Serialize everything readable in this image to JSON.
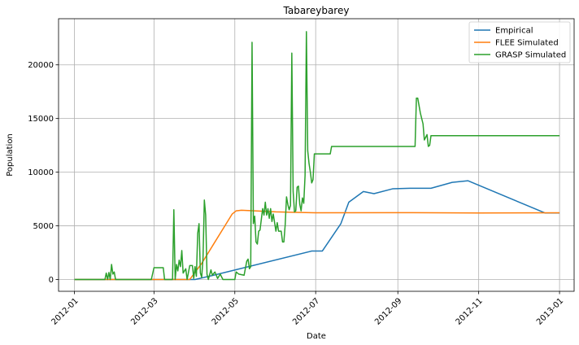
{
  "chart_data": {
    "type": "line",
    "title": "Tabareybarey",
    "xlabel": "Date",
    "ylabel": "Population",
    "x_ticks": [
      "2012-01",
      "2012-03",
      "2012-05",
      "2012-07",
      "2012-09",
      "2012-11",
      "2013-01"
    ],
    "y_ticks": [
      "0",
      "5000",
      "10000",
      "15000",
      "20000"
    ],
    "xlim": [
      "2011-12-20",
      "2013-01-12"
    ],
    "ylim": [
      -1100,
      24300
    ],
    "grid": true,
    "legend_position": "top-right",
    "series": [
      {
        "name": "Empirical",
        "color": "#1f77b4",
        "points": [
          [
            "2012-01-01",
            0
          ],
          [
            "2012-03-01",
            0
          ],
          [
            "2012-04-01",
            0
          ],
          [
            "2012-04-15",
            400
          ],
          [
            "2012-06-28",
            2650
          ],
          [
            "2012-07-06",
            2650
          ],
          [
            "2012-07-20",
            5200
          ],
          [
            "2012-07-26",
            7200
          ],
          [
            "2012-08-06",
            8200
          ],
          [
            "2012-08-14",
            8000
          ],
          [
            "2012-08-28",
            8450
          ],
          [
            "2012-09-10",
            8500
          ],
          [
            "2012-09-26",
            8500
          ],
          [
            "2012-10-12",
            9050
          ],
          [
            "2012-10-24",
            9200
          ],
          [
            "2012-12-21",
            6200
          ],
          [
            "2013-01-01",
            6200
          ]
        ]
      },
      {
        "name": "FLEE Simulated",
        "color": "#ff7f0e",
        "points": [
          [
            "2012-01-01",
            0
          ],
          [
            "2012-03-01",
            0
          ],
          [
            "2012-03-28",
            0
          ],
          [
            "2012-04-06",
            1500
          ],
          [
            "2012-04-16",
            3500
          ],
          [
            "2012-04-24",
            5100
          ],
          [
            "2012-04-29",
            6100
          ],
          [
            "2012-05-02",
            6400
          ],
          [
            "2012-05-06",
            6450
          ],
          [
            "2012-05-16",
            6400
          ],
          [
            "2012-06-01",
            6300
          ],
          [
            "2012-06-16",
            6250
          ],
          [
            "2012-07-01",
            6220
          ],
          [
            "2012-09-01",
            6230
          ],
          [
            "2012-11-01",
            6200
          ],
          [
            "2013-01-01",
            6220
          ]
        ]
      },
      {
        "name": "GRASP Simulated",
        "color": "#2ca02c",
        "points": [
          [
            "2012-01-01",
            0
          ],
          [
            "2012-01-24",
            0
          ],
          [
            "2012-01-25",
            600
          ],
          [
            "2012-01-26",
            0
          ],
          [
            "2012-01-27",
            650
          ],
          [
            "2012-01-28",
            0
          ],
          [
            "2012-01-29",
            1400
          ],
          [
            "2012-01-30",
            500
          ],
          [
            "2012-01-31",
            700
          ],
          [
            "2012-02-01",
            0
          ],
          [
            "2012-02-28",
            0
          ],
          [
            "2012-03-01",
            1100
          ],
          [
            "2012-03-08",
            1100
          ],
          [
            "2012-03-09",
            0
          ],
          [
            "2012-03-15",
            0
          ],
          [
            "2012-03-16",
            6500
          ],
          [
            "2012-03-17",
            0
          ],
          [
            "2012-03-18",
            1400
          ],
          [
            "2012-03-19",
            800
          ],
          [
            "2012-03-20",
            1800
          ],
          [
            "2012-03-21",
            1200
          ],
          [
            "2012-03-22",
            2700
          ],
          [
            "2012-03-23",
            600
          ],
          [
            "2012-03-25",
            1000
          ],
          [
            "2012-03-26",
            0
          ],
          [
            "2012-03-28",
            1300
          ],
          [
            "2012-03-30",
            1300
          ],
          [
            "2012-03-31",
            100
          ],
          [
            "2012-04-01",
            1200
          ],
          [
            "2012-04-02",
            300
          ],
          [
            "2012-04-03",
            4300
          ],
          [
            "2012-04-04",
            5200
          ],
          [
            "2012-04-05",
            600
          ],
          [
            "2012-04-06",
            200
          ],
          [
            "2012-04-07",
            2000
          ],
          [
            "2012-04-08",
            7400
          ],
          [
            "2012-04-09",
            6000
          ],
          [
            "2012-04-10",
            500
          ],
          [
            "2012-04-11",
            0
          ],
          [
            "2012-04-13",
            900
          ],
          [
            "2012-04-14",
            400
          ],
          [
            "2012-04-16",
            700
          ],
          [
            "2012-04-18",
            100
          ],
          [
            "2012-04-20",
            500
          ],
          [
            "2012-04-22",
            0
          ],
          [
            "2012-05-01",
            0
          ],
          [
            "2012-05-02",
            700
          ],
          [
            "2012-05-04",
            500
          ],
          [
            "2012-05-08",
            400
          ],
          [
            "2012-05-10",
            1700
          ],
          [
            "2012-05-11",
            1900
          ],
          [
            "2012-05-12",
            1000
          ],
          [
            "2012-05-13",
            1200
          ],
          [
            "2012-05-14",
            22100
          ],
          [
            "2012-05-15",
            5200
          ],
          [
            "2012-05-16",
            5900
          ],
          [
            "2012-05-17",
            3500
          ],
          [
            "2012-05-18",
            3300
          ],
          [
            "2012-05-19",
            4500
          ],
          [
            "2012-05-20",
            4600
          ],
          [
            "2012-05-21",
            5600
          ],
          [
            "2012-05-22",
            6600
          ],
          [
            "2012-05-23",
            6000
          ],
          [
            "2012-05-24",
            7200
          ],
          [
            "2012-05-25",
            6000
          ],
          [
            "2012-05-26",
            6600
          ],
          [
            "2012-05-27",
            5700
          ],
          [
            "2012-05-28",
            6600
          ],
          [
            "2012-05-29",
            5400
          ],
          [
            "2012-05-30",
            6100
          ],
          [
            "2012-06-01",
            4500
          ],
          [
            "2012-06-02",
            5300
          ],
          [
            "2012-06-03",
            4500
          ],
          [
            "2012-06-05",
            4500
          ],
          [
            "2012-06-06",
            3500
          ],
          [
            "2012-06-07",
            3500
          ],
          [
            "2012-06-08",
            5100
          ],
          [
            "2012-06-09",
            7700
          ],
          [
            "2012-06-10",
            7000
          ],
          [
            "2012-06-11",
            6500
          ],
          [
            "2012-06-12",
            6900
          ],
          [
            "2012-06-13",
            21100
          ],
          [
            "2012-06-14",
            8200
          ],
          [
            "2012-06-15",
            6300
          ],
          [
            "2012-06-16",
            6400
          ],
          [
            "2012-06-17",
            8600
          ],
          [
            "2012-06-18",
            8700
          ],
          [
            "2012-06-19",
            7000
          ],
          [
            "2012-06-20",
            6400
          ],
          [
            "2012-06-21",
            7600
          ],
          [
            "2012-06-22",
            7100
          ],
          [
            "2012-06-23",
            9700
          ],
          [
            "2012-06-24",
            23100
          ],
          [
            "2012-06-25",
            12000
          ],
          [
            "2012-06-26",
            10800
          ],
          [
            "2012-06-27",
            10000
          ],
          [
            "2012-06-28",
            9000
          ],
          [
            "2012-06-29",
            9300
          ],
          [
            "2012-06-30",
            11700
          ],
          [
            "2012-07-12",
            11700
          ],
          [
            "2012-07-13",
            12400
          ],
          [
            "2012-09-14",
            12400
          ],
          [
            "2012-09-15",
            16900
          ],
          [
            "2012-09-16",
            16900
          ],
          [
            "2012-09-18",
            15500
          ],
          [
            "2012-09-20",
            14500
          ],
          [
            "2012-09-21",
            13000
          ],
          [
            "2012-09-23",
            13500
          ],
          [
            "2012-09-24",
            12400
          ],
          [
            "2012-09-25",
            12500
          ],
          [
            "2012-09-26",
            13400
          ],
          [
            "2013-01-01",
            13400
          ]
        ]
      }
    ]
  }
}
